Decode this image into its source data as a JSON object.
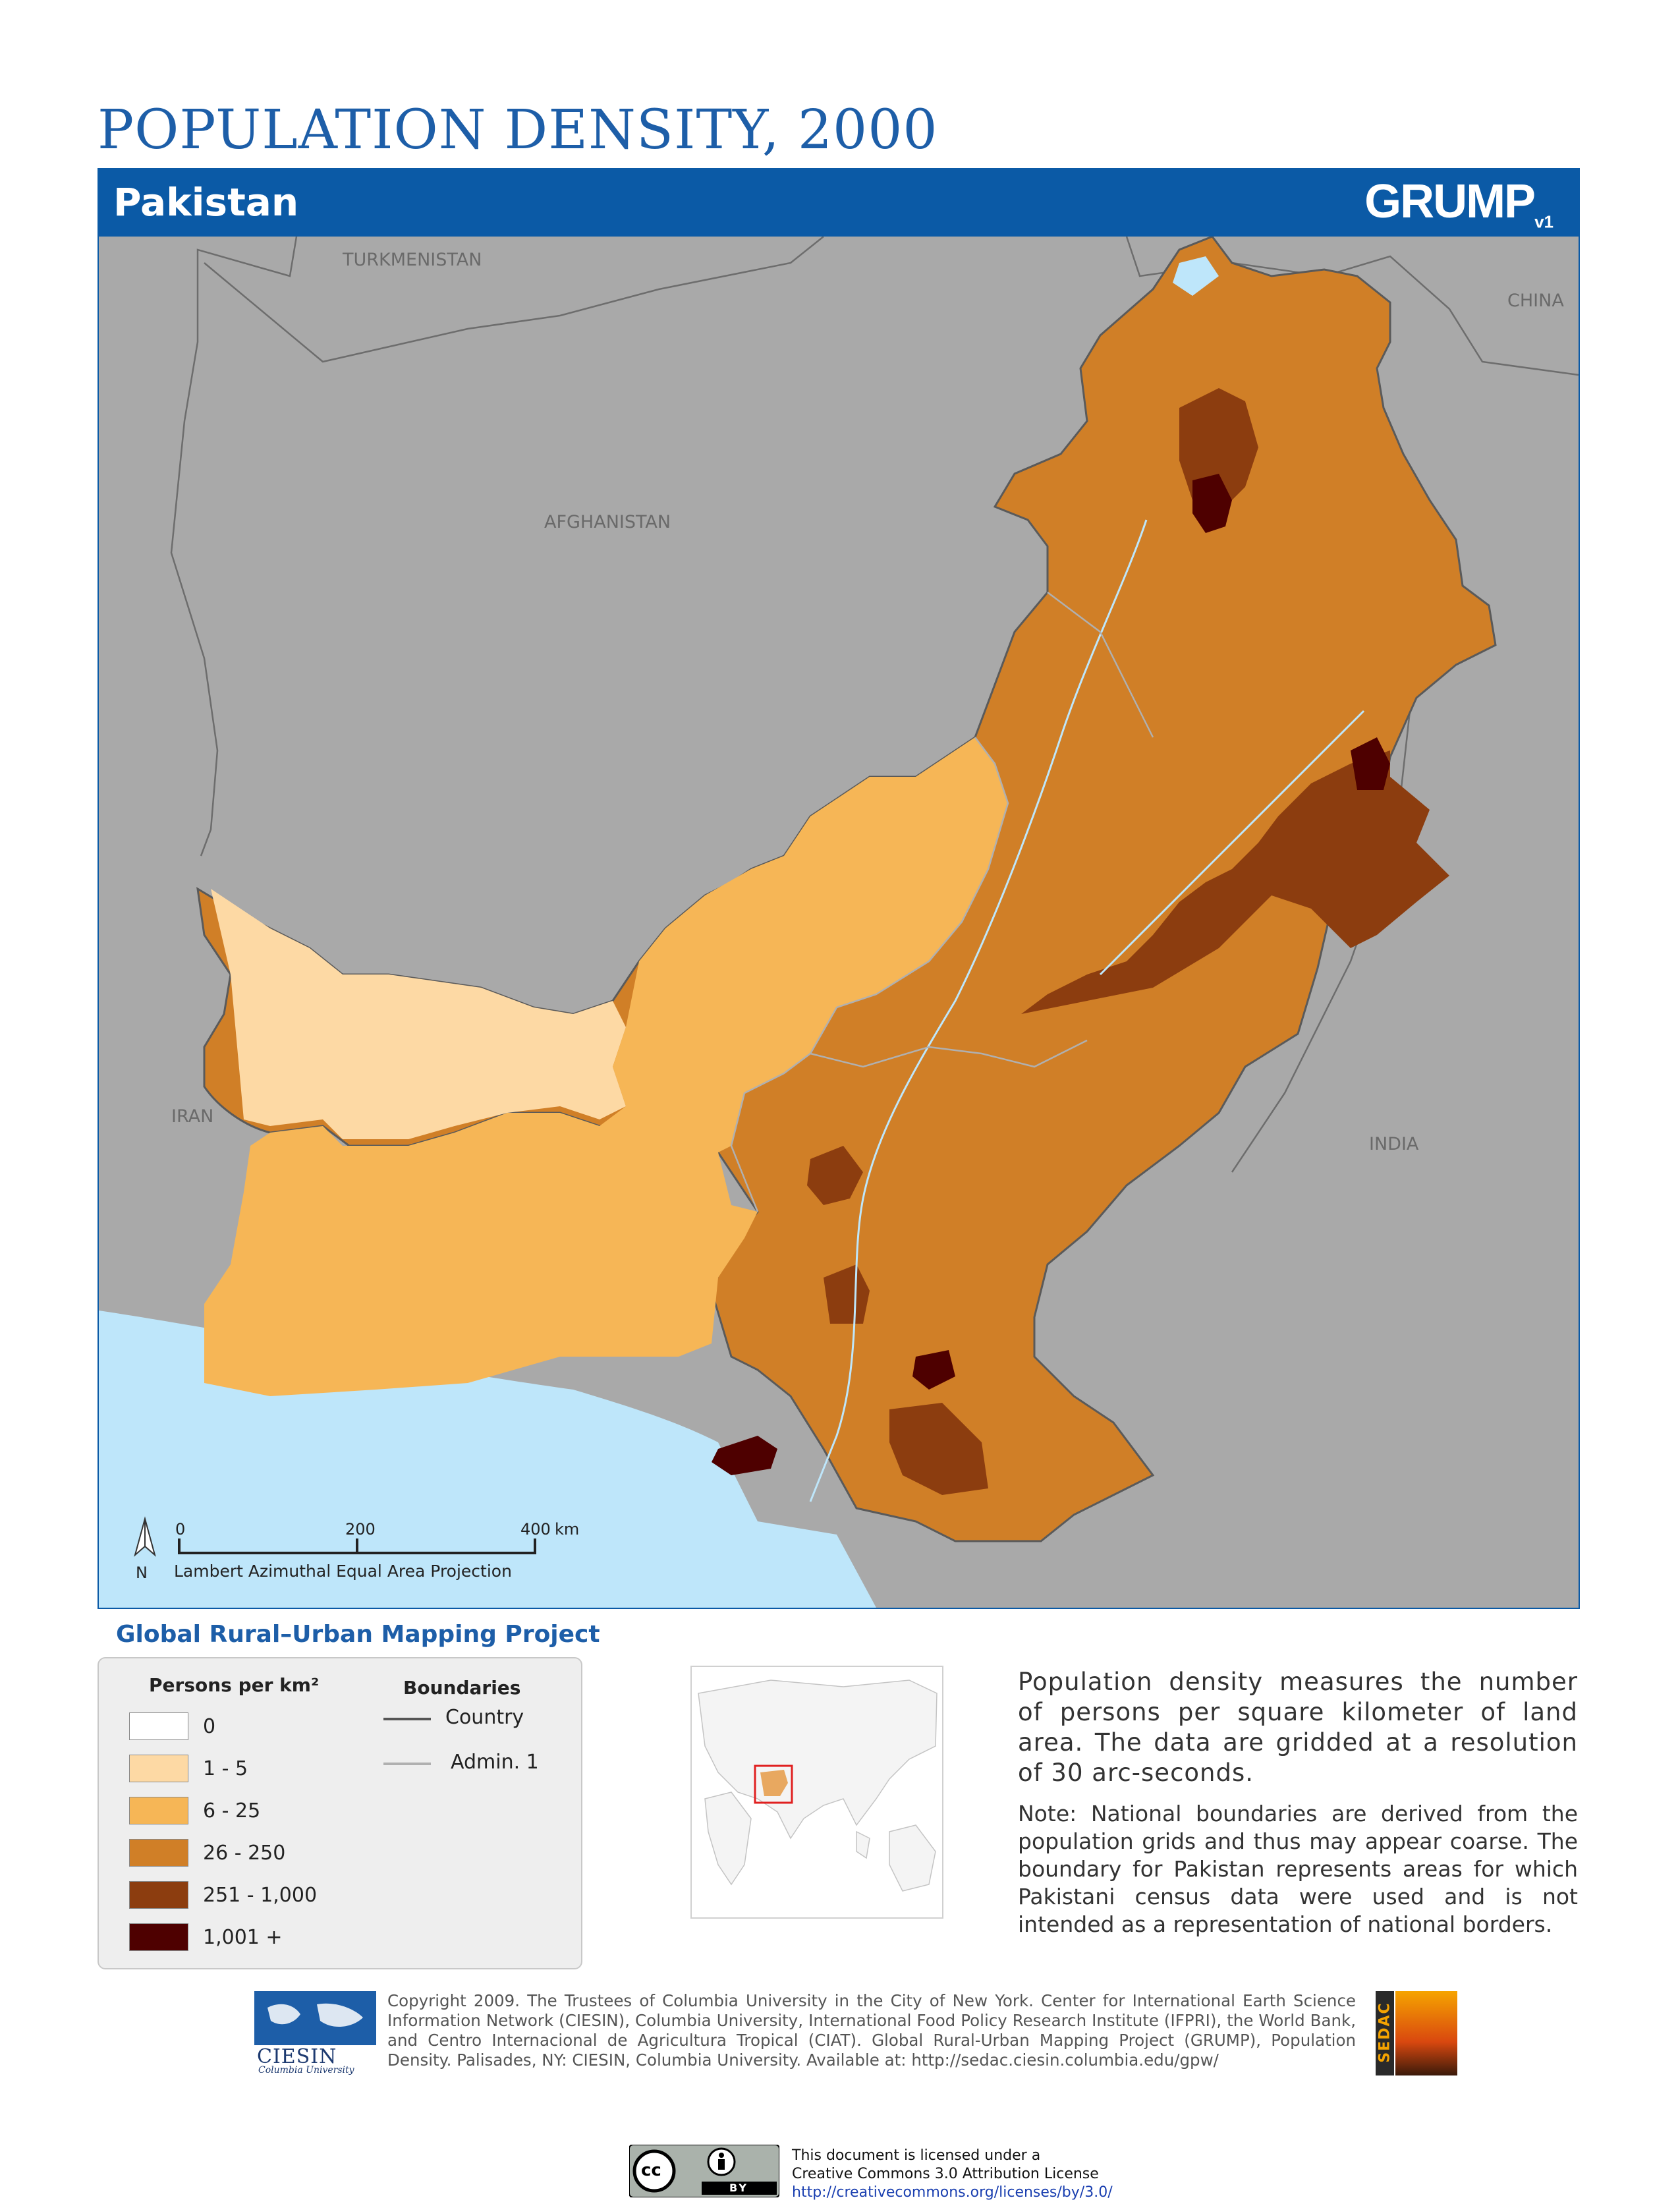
{
  "title": "POPULATION DENSITY, 2000",
  "country": "Pakistan",
  "logo_main": "GRUMP",
  "logo_version": "v1",
  "map": {
    "neighbors": {
      "turkmenistan": "TURKMENISTAN",
      "afghanistan": "AFGHANISTAN",
      "iran": "IRAN",
      "china": "CHINA",
      "india": "INDIA"
    },
    "scale": {
      "t0": "0",
      "t1": "200",
      "t2": "400",
      "unit": "km"
    },
    "north": "N",
    "projection": "Lambert Azimuthal Equal Area Projection",
    "colors": {
      "neighbors": "#a9a9a9",
      "water": "#bee6fa",
      "class_1_5": "#fdd9a4",
      "class_6_25": "#f6b656",
      "class_26_250": "#d07f27",
      "class_251_1000": "#8c3d0f",
      "class_1001": "#4e0000"
    }
  },
  "project_title": "Global Rural–Urban Mapping Project",
  "legend": {
    "density_header": "Persons per km²",
    "classes": [
      {
        "label": "0",
        "color": "#ffffff"
      },
      {
        "label": "1 - 5",
        "color": "#fdd9a4"
      },
      {
        "label": "6 - 25",
        "color": "#f6b656"
      },
      {
        "label": "26 - 250",
        "color": "#d07f27"
      },
      {
        "label": "251 - 1,000",
        "color": "#8c3d0f"
      },
      {
        "label": "1,001 +",
        "color": "#4e0000"
      }
    ],
    "boundaries_header": "Boundaries",
    "boundaries": [
      {
        "label": "Country",
        "color": "#555555"
      },
      {
        "label": "Admin. 1",
        "color": "#b0b0b0"
      }
    ]
  },
  "description": "Population density measures the number of persons per square kilometer of land area. The data are gridded at a resolution of 30 arc-seconds.",
  "note": "Note: National boundaries are derived from the population grids and thus may appear coarse. The boundary for Pakistan represents areas for which Pakistani census data were used and is not intended as a representation of national borders.",
  "copyright": "Copyright 2009. The Trustees of Columbia University in the City of New York. Center for International Earth Science Information Network (CIESIN), Columbia University, International Food Policy Research Institute (IFPRI), the World Bank, and Centro Internacional de Agricultura Tropical (CIAT). Global Rural-Urban Mapping Project (GRUMP), Population Density. Palisades, NY: CIESIN, Columbia University. Available at: http://sedac.ciesin.columbia.edu/gpw/",
  "ciesin_logo": {
    "name": "CIESIN",
    "sub": "Columbia University"
  },
  "sedac_logo": "SEDAC",
  "cc": {
    "mark": "cc",
    "by": "BY"
  },
  "license": {
    "line1": "This document is licensed under a",
    "line2": "Creative Commons 3.0 Attribution License",
    "url": "http://creativecommons.org/licenses/by/3.0/"
  }
}
